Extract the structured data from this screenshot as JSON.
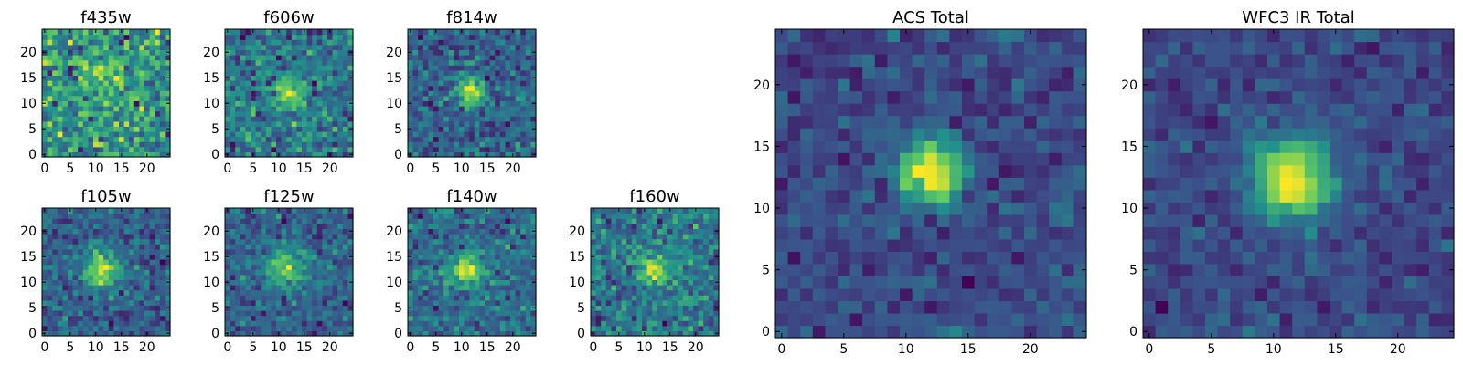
{
  "chart_data": [
    {
      "type": "heatmap",
      "title": "f435w",
      "xticks": [
        0,
        5,
        10,
        15,
        20
      ],
      "yticks": [
        0,
        5,
        10,
        15,
        20
      ],
      "xlim": [
        0,
        25
      ],
      "ylim": [
        0,
        25
      ],
      "grid": false,
      "source": {
        "cx": 12,
        "cy": 15,
        "amp": 0.25,
        "sigma": 3.0,
        "noise": 0.5,
        "seed": 11
      }
    },
    {
      "type": "heatmap",
      "title": "f606w",
      "xticks": [
        0,
        5,
        10,
        15,
        20
      ],
      "yticks": [
        0,
        5,
        10,
        15,
        20
      ],
      "xlim": [
        0,
        25
      ],
      "ylim": [
        0,
        25
      ],
      "grid": false,
      "source": {
        "cx": 12,
        "cy": 12,
        "amp": 0.5,
        "sigma": 2.2,
        "noise": 0.45,
        "seed": 23
      }
    },
    {
      "type": "heatmap",
      "title": "f814w",
      "xticks": [
        0,
        5,
        10,
        15,
        20
      ],
      "yticks": [
        0,
        5,
        10,
        15,
        20
      ],
      "xlim": [
        0,
        25
      ],
      "ylim": [
        0,
        25
      ],
      "grid": false,
      "source": {
        "cx": 12,
        "cy": 12.5,
        "amp": 0.7,
        "sigma": 1.8,
        "noise": 0.4,
        "seed": 37
      }
    },
    {
      "type": "heatmap",
      "title": "f105w",
      "xticks": [
        0,
        5,
        10,
        15,
        20
      ],
      "yticks": [
        0,
        5,
        10,
        15,
        20
      ],
      "xlim": [
        0,
        25
      ],
      "ylim": [
        0,
        25
      ],
      "grid": false,
      "source": {
        "cx": 11.5,
        "cy": 12.5,
        "amp": 0.7,
        "sigma": 2.4,
        "noise": 0.35,
        "seed": 41
      }
    },
    {
      "type": "heatmap",
      "title": "f125w",
      "xticks": [
        0,
        5,
        10,
        15,
        20
      ],
      "yticks": [
        0,
        5,
        10,
        15,
        20
      ],
      "xlim": [
        0,
        25
      ],
      "ylim": [
        0,
        25
      ],
      "grid": false,
      "source": {
        "cx": 11.5,
        "cy": 13,
        "amp": 0.5,
        "sigma": 2.8,
        "noise": 0.35,
        "seed": 53
      }
    },
    {
      "type": "heatmap",
      "title": "f140w",
      "xticks": [
        0,
        5,
        10,
        15,
        20
      ],
      "yticks": [
        0,
        5,
        10,
        15,
        20
      ],
      "xlim": [
        0,
        25
      ],
      "ylim": [
        0,
        25
      ],
      "grid": false,
      "source": {
        "cx": 11,
        "cy": 12.5,
        "amp": 0.7,
        "sigma": 2.0,
        "noise": 0.35,
        "seed": 67
      }
    },
    {
      "type": "heatmap",
      "title": "f160w",
      "xticks": [
        0,
        5,
        10,
        15,
        20
      ],
      "yticks": [
        0,
        5,
        10,
        15,
        20
      ],
      "xlim": [
        0,
        25
      ],
      "ylim": [
        0,
        25
      ],
      "grid": false,
      "source": {
        "cx": 12,
        "cy": 12.5,
        "amp": 0.6,
        "sigma": 2.0,
        "noise": 0.4,
        "seed": 79
      }
    },
    {
      "type": "heatmap",
      "title": "ACS Total",
      "xticks": [
        0,
        5,
        10,
        15,
        20
      ],
      "yticks": [
        0,
        5,
        10,
        15,
        20
      ],
      "xlim": [
        0,
        25
      ],
      "ylim": [
        0,
        25
      ],
      "grid": false,
      "source": {
        "cx": 12,
        "cy": 13,
        "amp": 1.0,
        "sigma": 1.8,
        "noise": 0.28,
        "seed": 97
      }
    },
    {
      "type": "heatmap",
      "title": "WFC3 IR Total",
      "xticks": [
        0,
        5,
        10,
        15,
        20
      ],
      "yticks": [
        0,
        5,
        10,
        15,
        20
      ],
      "xlim": [
        0,
        25
      ],
      "ylim": [
        0,
        25
      ],
      "grid": false,
      "source": {
        "cx": 11.5,
        "cy": 12.5,
        "amp": 1.0,
        "sigma": 2.2,
        "noise": 0.22,
        "seed": 113
      }
    }
  ],
  "colormap": [
    "#440154",
    "#3b528b",
    "#21918c",
    "#5ec962",
    "#fde725"
  ]
}
